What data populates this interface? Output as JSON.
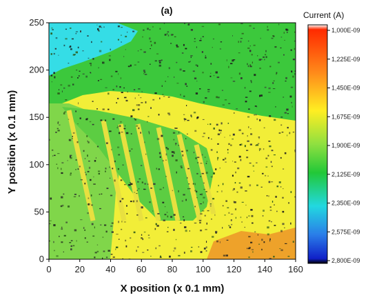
{
  "chart_data": {
    "type": "heatmap",
    "panel_label": "(a)",
    "xlabel": "X position (x 0.1 mm)",
    "ylabel": "Y position (x 0.1 mm)",
    "xlim": [
      0,
      160
    ],
    "ylim": [
      0,
      250
    ],
    "x_ticks": [
      "0",
      "20",
      "40",
      "60",
      "80",
      "100",
      "120",
      "140",
      "160"
    ],
    "y_ticks": [
      "0",
      "50",
      "100",
      "150",
      "200",
      "250"
    ],
    "colorbar": {
      "title": "Current (A)",
      "tick_labels": [
        "1,000E-09",
        "1,225E-09",
        "1,450E-09",
        "1,675E-09",
        "1,900E-09",
        "2,125E-09",
        "2,350E-09",
        "2,575E-09",
        "2,800E-09"
      ],
      "colors_top_to_bottom": [
        "#ffffff",
        "#ff2a00",
        "#ff8a1a",
        "#ffee22",
        "#8fe040",
        "#22c838",
        "#22d8e0",
        "#2a7de8",
        "#1020c8",
        "#000000"
      ]
    },
    "regions": [
      {
        "name": "cyan",
        "value": 2.3e-09,
        "color": "#39e0e8",
        "x": [
          0,
          40
        ],
        "y": [
          190,
          250
        ]
      },
      {
        "name": "green-upper",
        "value": 1.95e-09,
        "color": "#3ec83e",
        "x": [
          0,
          160
        ],
        "y": [
          160,
          200
        ]
      },
      {
        "name": "light-green-left",
        "value": 1.82e-09,
        "color": "#86d94a",
        "x": [
          0,
          50
        ],
        "y": [
          0,
          160
        ]
      },
      {
        "name": "yellow",
        "value": 1.5e-09,
        "color": "#f2f03a",
        "x": [
          50,
          160
        ],
        "y": [
          0,
          160
        ]
      },
      {
        "name": "orange-bottom-right",
        "value": 1.3e-09,
        "color": "#f0a028",
        "x": [
          110,
          160
        ],
        "y": [
          0,
          20
        ]
      }
    ]
  }
}
